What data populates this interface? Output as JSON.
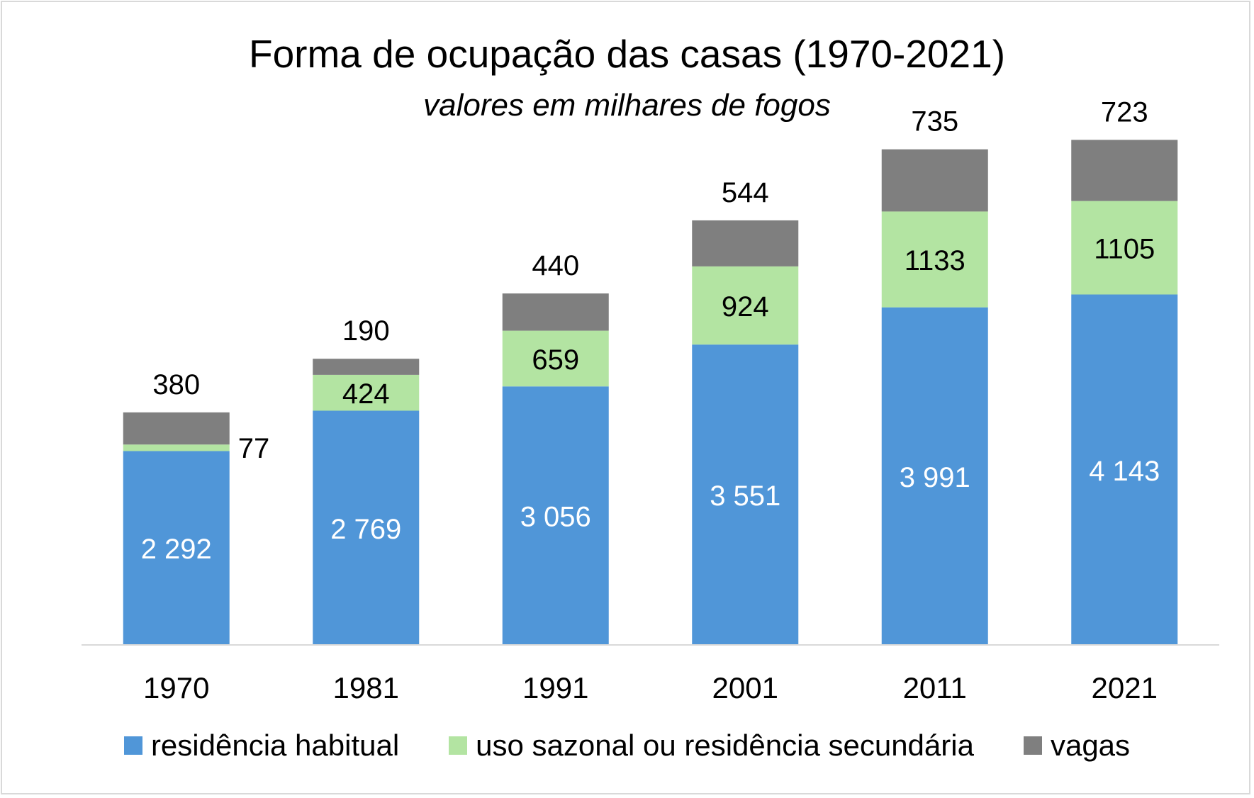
{
  "chart_data": {
    "type": "bar",
    "stacked": true,
    "title": "Forma de ocupação das casas (1970-2021)",
    "subtitle": "valores em milhares de fogos",
    "categories": [
      "1970",
      "1981",
      "1991",
      "2001",
      "2011",
      "2021"
    ],
    "series": [
      {
        "name": "residência habitual",
        "color": "#5096d8",
        "label_color": "#ffffff",
        "values": [
          2292,
          2769,
          3056,
          3551,
          3991,
          4143
        ],
        "labels": [
          "2 292",
          "2 769",
          "3 056",
          "3 551",
          "3 991",
          "4 143"
        ]
      },
      {
        "name": "uso sazonal ou residência secundária",
        "color": "#b3e4a2",
        "label_color": "#000000",
        "values": [
          77,
          424,
          659,
          924,
          1133,
          1105
        ],
        "labels": [
          "77",
          "424",
          "659",
          "924",
          "1133",
          "1105"
        ]
      },
      {
        "name": "vagas",
        "color": "#7f7f7f",
        "label_color": "#000000",
        "values": [
          380,
          190,
          440,
          544,
          735,
          723
        ],
        "labels": [
          "380",
          "190",
          "440",
          "544",
          "735",
          "723"
        ]
      }
    ],
    "ylim": [
      0,
      6200
    ],
    "grid": false,
    "legend_position": "bottom"
  }
}
